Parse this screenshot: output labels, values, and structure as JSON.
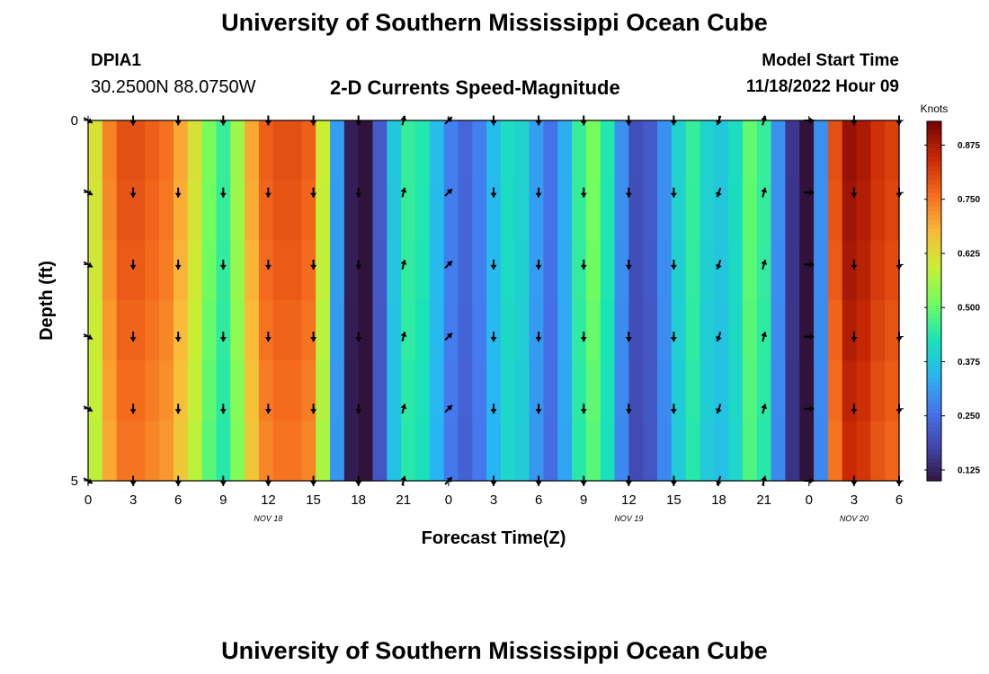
{
  "page": {
    "title": "University of Southern Mississippi Ocean Cube",
    "footer_title": "University of Southern Mississippi Ocean Cube",
    "station_id": "DPIA1",
    "coordinates": "30.2500N  88.0750W",
    "subtitle": "2-D Currents Speed-Magnitude",
    "model_start_label": "Model Start Time",
    "model_start_value": "11/18/2022 Hour 09"
  },
  "chart_data": {
    "type": "heatmap",
    "title": "2-D Currents Speed-Magnitude",
    "xlabel": "Forecast Time(Z)",
    "ylabel": "Depth (ft)",
    "x_tick_labels": [
      "0",
      "3",
      "6",
      "9",
      "12",
      "15",
      "18",
      "21",
      "0",
      "3",
      "6",
      "9",
      "12",
      "15",
      "18",
      "21",
      "0",
      "3",
      "6"
    ],
    "x_range_hours": [
      0,
      54
    ],
    "date_labels": [
      {
        "text": "NOV 18",
        "hour": 12
      },
      {
        "text": "NOV 19",
        "hour": 36
      },
      {
        "text": "NOV 20",
        "hour": 51
      }
    ],
    "y_tick_labels": [
      {
        "text": "0",
        "depth": 0
      },
      {
        "text": "5",
        "depth": 5
      }
    ],
    "y_range": [
      0,
      5
    ],
    "depth_levels": [
      0,
      1,
      2,
      3,
      4,
      5
    ],
    "colorbar": {
      "label": "Knots",
      "range": [
        0.1,
        0.93
      ],
      "ticks": [
        "0.125",
        "0.250",
        "0.375",
        "0.500",
        "0.625",
        "0.750",
        "0.875"
      ]
    },
    "speed_profile_knots": [
      0.62,
      0.74,
      0.8,
      0.8,
      0.78,
      0.76,
      0.7,
      0.62,
      0.52,
      0.46,
      0.56,
      0.7,
      0.78,
      0.8,
      0.8,
      0.78,
      0.6,
      0.32,
      0.12,
      0.1,
      0.22,
      0.38,
      0.46,
      0.44,
      0.36,
      0.28,
      0.24,
      0.28,
      0.36,
      0.42,
      0.4,
      0.32,
      0.26,
      0.34,
      0.46,
      0.52,
      0.44,
      0.3,
      0.2,
      0.22,
      0.3,
      0.4,
      0.46,
      0.4,
      0.38,
      0.42,
      0.5,
      0.46,
      0.3,
      0.16,
      0.1,
      0.3,
      0.8,
      0.9,
      0.88,
      0.84,
      0.82
    ],
    "depth_factors": [
      1.0,
      0.97,
      0.93,
      0.88,
      0.83,
      0.78
    ],
    "arrows": {
      "hours": [
        0,
        3,
        6,
        9,
        12,
        15,
        18,
        21,
        24,
        27,
        30,
        33,
        36,
        39,
        42,
        45,
        48,
        51,
        54
      ],
      "directions_deg": [
        120,
        180,
        180,
        180,
        180,
        180,
        180,
        15,
        45,
        180,
        180,
        180,
        180,
        180,
        200,
        15,
        90,
        180,
        180
      ]
    }
  }
}
